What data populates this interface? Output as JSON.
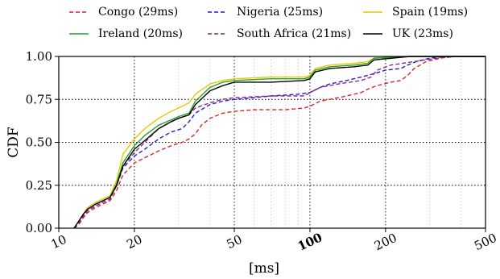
{
  "chart_data": {
    "type": "line",
    "xlabel": "[ms]",
    "ylabel": "CDF",
    "x_scale": "log",
    "xlim": [
      10,
      500
    ],
    "ylim": [
      0,
      1
    ],
    "x_ticks": [
      10,
      20,
      50,
      100,
      200,
      500
    ],
    "x_tick_labels": [
      "10",
      "20",
      "50",
      "100",
      "200",
      "500"
    ],
    "y_ticks": [
      0,
      0.25,
      0.5,
      0.75,
      1.0
    ],
    "y_tick_labels": [
      "0.00",
      "0.25",
      "0.50",
      "0.75",
      "1.00"
    ],
    "grid": true,
    "legend_position": "top",
    "series": [
      {
        "name": "Congo (29ms)",
        "color": "#d62728",
        "dash": "dashed",
        "points": [
          [
            11.5,
            0
          ],
          [
            12,
            0.02
          ],
          [
            12.5,
            0.06
          ],
          [
            13,
            0.09
          ],
          [
            14,
            0.12
          ],
          [
            15,
            0.14
          ],
          [
            16,
            0.16
          ],
          [
            17,
            0.22
          ],
          [
            18,
            0.31
          ],
          [
            20,
            0.38
          ],
          [
            22,
            0.41
          ],
          [
            25,
            0.45
          ],
          [
            28,
            0.48
          ],
          [
            31,
            0.5
          ],
          [
            33,
            0.52
          ],
          [
            35,
            0.55
          ],
          [
            37,
            0.6
          ],
          [
            40,
            0.64
          ],
          [
            45,
            0.67
          ],
          [
            50,
            0.68
          ],
          [
            60,
            0.69
          ],
          [
            80,
            0.69
          ],
          [
            95,
            0.7
          ],
          [
            100,
            0.71
          ],
          [
            110,
            0.74
          ],
          [
            130,
            0.76
          ],
          [
            150,
            0.78
          ],
          [
            160,
            0.79
          ],
          [
            170,
            0.81
          ],
          [
            185,
            0.83
          ],
          [
            210,
            0.85
          ],
          [
            230,
            0.86
          ],
          [
            245,
            0.89
          ],
          [
            260,
            0.93
          ],
          [
            290,
            0.97
          ],
          [
            330,
            0.99
          ],
          [
            380,
            1.0
          ],
          [
            500,
            1.0
          ]
        ]
      },
      {
        "name": "Nigeria (25ms)",
        "color": "#1f1fd6",
        "dash": "dashed",
        "points": [
          [
            11.5,
            0
          ],
          [
            12,
            0.03
          ],
          [
            12.5,
            0.07
          ],
          [
            13,
            0.1
          ],
          [
            14,
            0.13
          ],
          [
            15,
            0.15
          ],
          [
            16,
            0.17
          ],
          [
            17,
            0.25
          ],
          [
            18,
            0.35
          ],
          [
            20,
            0.42
          ],
          [
            22,
            0.46
          ],
          [
            25,
            0.52
          ],
          [
            28,
            0.56
          ],
          [
            31,
            0.58
          ],
          [
            33,
            0.62
          ],
          [
            35,
            0.67
          ],
          [
            40,
            0.72
          ],
          [
            45,
            0.74
          ],
          [
            50,
            0.75
          ],
          [
            60,
            0.76
          ],
          [
            70,
            0.77
          ],
          [
            90,
            0.78
          ],
          [
            100,
            0.79
          ],
          [
            110,
            0.82
          ],
          [
            120,
            0.84
          ],
          [
            140,
            0.86
          ],
          [
            160,
            0.88
          ],
          [
            180,
            0.9
          ],
          [
            200,
            0.92
          ],
          [
            230,
            0.93
          ],
          [
            245,
            0.95
          ],
          [
            265,
            0.97
          ],
          [
            300,
            0.99
          ],
          [
            350,
            1.0
          ],
          [
            500,
            1.0
          ]
        ]
      },
      {
        "name": "Spain (19ms)",
        "color": "#e6c800",
        "dash": "solid",
        "points": [
          [
            11.5,
            0
          ],
          [
            12,
            0.04
          ],
          [
            12.5,
            0.08
          ],
          [
            13,
            0.12
          ],
          [
            14,
            0.15
          ],
          [
            15,
            0.17
          ],
          [
            16,
            0.19
          ],
          [
            17,
            0.28
          ],
          [
            18,
            0.43
          ],
          [
            20,
            0.52
          ],
          [
            22,
            0.58
          ],
          [
            25,
            0.64
          ],
          [
            28,
            0.68
          ],
          [
            30,
            0.7
          ],
          [
            33,
            0.73
          ],
          [
            35,
            0.78
          ],
          [
            40,
            0.84
          ],
          [
            45,
            0.86
          ],
          [
            50,
            0.87
          ],
          [
            70,
            0.88
          ],
          [
            95,
            0.88
          ],
          [
            100,
            0.89
          ],
          [
            105,
            0.93
          ],
          [
            120,
            0.95
          ],
          [
            150,
            0.96
          ],
          [
            170,
            0.97
          ],
          [
            180,
            0.99
          ],
          [
            250,
            1.0
          ],
          [
            500,
            1.0
          ]
        ]
      },
      {
        "name": "Ireland (20ms)",
        "color": "#2ca02c",
        "dash": "solid",
        "points": [
          [
            11.5,
            0
          ],
          [
            12,
            0.04
          ],
          [
            12.5,
            0.08
          ],
          [
            13,
            0.11
          ],
          [
            14,
            0.14
          ],
          [
            15,
            0.16
          ],
          [
            16,
            0.18
          ],
          [
            17,
            0.26
          ],
          [
            18,
            0.38
          ],
          [
            20,
            0.48
          ],
          [
            22,
            0.54
          ],
          [
            25,
            0.6
          ],
          [
            28,
            0.63
          ],
          [
            30,
            0.65
          ],
          [
            33,
            0.67
          ],
          [
            35,
            0.74
          ],
          [
            40,
            0.82
          ],
          [
            45,
            0.85
          ],
          [
            50,
            0.86
          ],
          [
            70,
            0.87
          ],
          [
            95,
            0.87
          ],
          [
            100,
            0.88
          ],
          [
            105,
            0.92
          ],
          [
            120,
            0.94
          ],
          [
            150,
            0.95
          ],
          [
            170,
            0.96
          ],
          [
            180,
            0.99
          ],
          [
            250,
            1.0
          ],
          [
            500,
            1.0
          ]
        ]
      },
      {
        "name": "South Africa (21ms)",
        "color": "#8e278f",
        "dash": "dashed",
        "points": [
          [
            11.5,
            0
          ],
          [
            12,
            0.03
          ],
          [
            12.5,
            0.07
          ],
          [
            13,
            0.1
          ],
          [
            14,
            0.13
          ],
          [
            15,
            0.15
          ],
          [
            16,
            0.17
          ],
          [
            17,
            0.25
          ],
          [
            18,
            0.36
          ],
          [
            20,
            0.44
          ],
          [
            22,
            0.5
          ],
          [
            25,
            0.58
          ],
          [
            28,
            0.62
          ],
          [
            30,
            0.64
          ],
          [
            33,
            0.66
          ],
          [
            35,
            0.7
          ],
          [
            40,
            0.73
          ],
          [
            45,
            0.75
          ],
          [
            50,
            0.76
          ],
          [
            70,
            0.77
          ],
          [
            95,
            0.77
          ],
          [
            100,
            0.79
          ],
          [
            110,
            0.82
          ],
          [
            130,
            0.84
          ],
          [
            160,
            0.86
          ],
          [
            175,
            0.88
          ],
          [
            185,
            0.92
          ],
          [
            210,
            0.95
          ],
          [
            260,
            0.97
          ],
          [
            320,
            0.99
          ],
          [
            380,
            1.0
          ],
          [
            500,
            1.0
          ]
        ]
      },
      {
        "name": "UK (23ms)",
        "color": "#000000",
        "dash": "solid",
        "points": [
          [
            11.5,
            0
          ],
          [
            12,
            0.04
          ],
          [
            12.5,
            0.08
          ],
          [
            13,
            0.11
          ],
          [
            14,
            0.14
          ],
          [
            15,
            0.16
          ],
          [
            16,
            0.18
          ],
          [
            17,
            0.25
          ],
          [
            18,
            0.36
          ],
          [
            20,
            0.46
          ],
          [
            22,
            0.51
          ],
          [
            25,
            0.58
          ],
          [
            28,
            0.62
          ],
          [
            30,
            0.64
          ],
          [
            33,
            0.66
          ],
          [
            35,
            0.72
          ],
          [
            40,
            0.8
          ],
          [
            45,
            0.83
          ],
          [
            50,
            0.85
          ],
          [
            70,
            0.85
          ],
          [
            95,
            0.86
          ],
          [
            100,
            0.87
          ],
          [
            105,
            0.91
          ],
          [
            120,
            0.93
          ],
          [
            150,
            0.94
          ],
          [
            170,
            0.95
          ],
          [
            180,
            0.98
          ],
          [
            250,
            1.0
          ],
          [
            500,
            1.0
          ]
        ]
      }
    ]
  }
}
